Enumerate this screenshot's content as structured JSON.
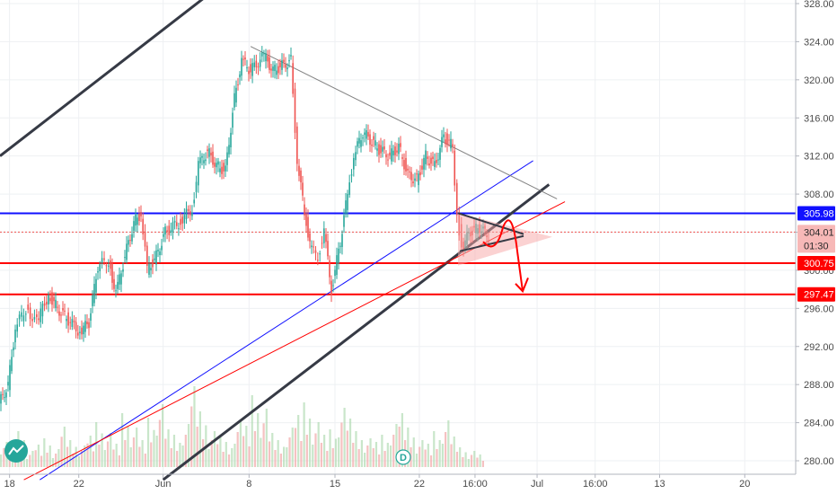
{
  "chart_data": {
    "type": "candlestick",
    "ylim": [
      278.0,
      330.0
    ],
    "y_ticks": [
      280,
      284,
      288,
      292,
      296,
      300,
      304,
      308,
      312,
      316,
      320,
      324,
      328
    ],
    "y_tick_labels": [
      "280.00",
      "284.00",
      "288.00",
      "292.00",
      "296.00",
      "300.00",
      "304.00",
      "308.00",
      "312.00",
      "316.00",
      "320.00",
      "324.00",
      "328.00"
    ],
    "x_tick_labels": [
      "18",
      "22",
      "Jun",
      "8",
      "15",
      "22",
      "16:00",
      "Jul",
      "16:00",
      "13",
      "20"
    ],
    "grid": true,
    "price_tags": [
      {
        "label": "305.98",
        "value": 305.98,
        "color": "#1010ff"
      },
      {
        "label": "304.01",
        "value": 304.01,
        "color": "#ef5350"
      },
      {
        "label": "01:30",
        "value": 302.6,
        "color": "#ef5350"
      },
      {
        "label": "300.75",
        "value": 300.75,
        "color": "#ff0000"
      },
      {
        "label": "297.47",
        "value": 297.47,
        "color": "#ff0000"
      }
    ],
    "horizontal_levels": [
      {
        "value": 305.98,
        "color": "#1010ff"
      },
      {
        "value": 300.75,
        "color": "#ff0000"
      },
      {
        "value": 297.47,
        "color": "#ff0000"
      },
      {
        "value": 304.01,
        "color": "#ef5350",
        "style": "dotted"
      }
    ],
    "price_path": [
      [
        0,
        286.0
      ],
      [
        10,
        288.0
      ],
      [
        18,
        294.0
      ],
      [
        30,
        296.0
      ],
      [
        42,
        294.5
      ],
      [
        55,
        297.5
      ],
      [
        65,
        296.0
      ],
      [
        75,
        295.0
      ],
      [
        90,
        293.5
      ],
      [
        100,
        294.5
      ],
      [
        110,
        300.5
      ],
      [
        122,
        301.0
      ],
      [
        130,
        297.5
      ],
      [
        140,
        301.5
      ],
      [
        150,
        305.0
      ],
      [
        158,
        306.0
      ],
      [
        165,
        300.0
      ],
      [
        175,
        301.5
      ],
      [
        185,
        304.0
      ],
      [
        200,
        305.0
      ],
      [
        215,
        306.5
      ],
      [
        222,
        311.0
      ],
      [
        232,
        312.5
      ],
      [
        242,
        311.0
      ],
      [
        252,
        310.5
      ],
      [
        262,
        318.0
      ],
      [
        270,
        322.0
      ],
      [
        280,
        321.0
      ],
      [
        295,
        322.5
      ],
      [
        305,
        321.0
      ],
      [
        315,
        321.5
      ],
      [
        325,
        322.0
      ],
      [
        332,
        311.5
      ],
      [
        340,
        306.0
      ],
      [
        348,
        302.0
      ],
      [
        355,
        301.5
      ],
      [
        362,
        304.0
      ],
      [
        370,
        298.0
      ],
      [
        380,
        303.0
      ],
      [
        388,
        308.0
      ],
      [
        395,
        312.0
      ],
      [
        405,
        314.5
      ],
      [
        415,
        313.5
      ],
      [
        425,
        312.5
      ],
      [
        435,
        312.0
      ],
      [
        445,
        313.0
      ],
      [
        455,
        310.0
      ],
      [
        465,
        309.5
      ],
      [
        475,
        312.0
      ],
      [
        485,
        311.0
      ],
      [
        495,
        314.0
      ],
      [
        505,
        313.0
      ],
      [
        510,
        306.0
      ],
      [
        515,
        302.5
      ],
      [
        525,
        304.0
      ],
      [
        535,
        304.5
      ],
      [
        545,
        303.5
      ]
    ],
    "volume_heights": [
      28,
      22,
      40,
      18,
      25,
      32,
      20,
      45,
      30,
      24,
      35,
      50,
      38,
      26,
      60,
      44,
      30,
      55,
      70,
      42,
      36,
      48,
      90,
      62,
      40,
      34,
      28,
      52,
      46,
      80,
      65,
      38,
      30,
      44,
      58,
      72,
      50,
      36,
      42,
      66,
      54,
      40,
      32,
      28,
      36,
      48,
      60,
      44,
      30,
      26,
      40,
      52,
      34,
      22,
      18,
      14
    ],
    "volume_bar_color_up": "#a5d6a7",
    "volume_bar_color_down": "#ef9a9a",
    "candle_up_color": "#26a69a",
    "candle_down_color": "#ef5350",
    "trend_lines": [
      {
        "x1_frac": 0.0,
        "y1": 312.0,
        "x2_frac": 0.34,
        "y2": 334.0,
        "color": "#363a45",
        "width": 3
      },
      {
        "x1_frac": 0.205,
        "y1": 278.0,
        "x2_frac": 0.69,
        "y2": 309.0,
        "color": "#363a45",
        "width": 3
      },
      {
        "x1_frac": 0.05,
        "y1": 278.0,
        "x2_frac": 0.67,
        "y2": 311.5,
        "color": "#1010ff",
        "width": 1
      },
      {
        "x1_frac": 0.03,
        "y1": 278.0,
        "x2_frac": 0.71,
        "y2": 307.2,
        "color": "#ff0000",
        "width": 1
      },
      {
        "x1_frac": 0.315,
        "y1": 323.5,
        "x2_frac": 0.7,
        "y2": 307.5,
        "color": "#808080",
        "width": 1
      }
    ],
    "annotations": {
      "triangle_fill": "#f8a5a5",
      "arrow_color": "#ff0000",
      "dividend_label": "D"
    }
  },
  "branding": {
    "logo_icon": "tradingview-logo-icon",
    "logo_color": "#26a69a"
  }
}
